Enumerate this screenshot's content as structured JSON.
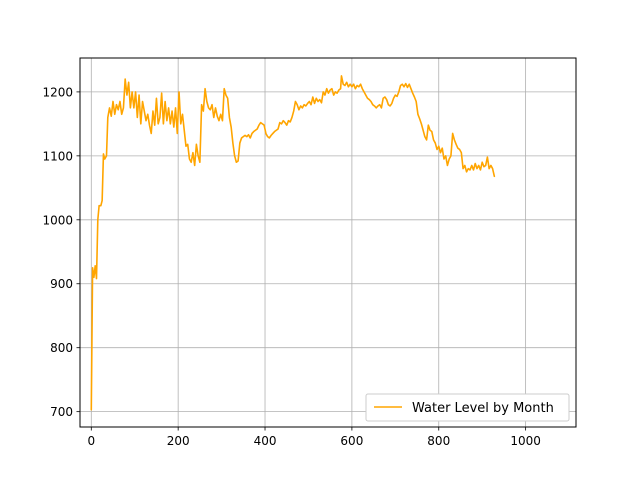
{
  "chart_data": {
    "type": "line",
    "title": "",
    "xlabel": "",
    "ylabel": "",
    "xlim": [
      -26,
      1116
    ],
    "ylim": [
      676,
      1253
    ],
    "x_ticks": [
      0,
      200,
      400,
      600,
      800,
      1000
    ],
    "y_ticks": [
      700,
      800,
      900,
      1000,
      1100,
      1200
    ],
    "grid": true,
    "legend_position": "lower-right",
    "colors": {
      "line": "#ffa500",
      "grid": "#b0b0b0",
      "axes": "#000000"
    },
    "series": [
      {
        "name": "Water Level by Month",
        "points": [
          [
            0,
            703
          ],
          [
            3,
            925
          ],
          [
            6,
            910
          ],
          [
            9,
            928
          ],
          [
            12,
            908
          ],
          [
            15,
            1000
          ],
          [
            18,
            1022
          ],
          [
            22,
            1022
          ],
          [
            25,
            1030
          ],
          [
            28,
            1103
          ],
          [
            31,
            1095
          ],
          [
            35,
            1100
          ],
          [
            38,
            1160
          ],
          [
            42,
            1175
          ],
          [
            46,
            1162
          ],
          [
            50,
            1185
          ],
          [
            54,
            1165
          ],
          [
            58,
            1180
          ],
          [
            62,
            1172
          ],
          [
            66,
            1185
          ],
          [
            70,
            1165
          ],
          [
            74,
            1175
          ],
          [
            78,
            1220
          ],
          [
            82,
            1195
          ],
          [
            86,
            1215
          ],
          [
            90,
            1175
          ],
          [
            94,
            1200
          ],
          [
            98,
            1175
          ],
          [
            102,
            1200
          ],
          [
            106,
            1160
          ],
          [
            110,
            1195
          ],
          [
            114,
            1150
          ],
          [
            118,
            1185
          ],
          [
            122,
            1170
          ],
          [
            126,
            1155
          ],
          [
            130,
            1165
          ],
          [
            134,
            1148
          ],
          [
            138,
            1135
          ],
          [
            142,
            1170
          ],
          [
            146,
            1148
          ],
          [
            150,
            1190
          ],
          [
            154,
            1150
          ],
          [
            158,
            1160
          ],
          [
            162,
            1198
          ],
          [
            166,
            1150
          ],
          [
            170,
            1185
          ],
          [
            174,
            1155
          ],
          [
            178,
            1175
          ],
          [
            182,
            1150
          ],
          [
            186,
            1170
          ],
          [
            190,
            1145
          ],
          [
            194,
            1175
          ],
          [
            198,
            1135
          ],
          [
            202,
            1200
          ],
          [
            206,
            1150
          ],
          [
            210,
            1165
          ],
          [
            214,
            1140
          ],
          [
            218,
            1115
          ],
          [
            222,
            1118
          ],
          [
            226,
            1095
          ],
          [
            230,
            1090
          ],
          [
            234,
            1105
          ],
          [
            238,
            1085
          ],
          [
            242,
            1118
          ],
          [
            246,
            1100
          ],
          [
            250,
            1090
          ],
          [
            254,
            1180
          ],
          [
            258,
            1170
          ],
          [
            262,
            1205
          ],
          [
            266,
            1185
          ],
          [
            270,
            1175
          ],
          [
            274,
            1172
          ],
          [
            278,
            1180
          ],
          [
            282,
            1160
          ],
          [
            286,
            1175
          ],
          [
            290,
            1162
          ],
          [
            294,
            1155
          ],
          [
            298,
            1165
          ],
          [
            302,
            1155
          ],
          [
            306,
            1205
          ],
          [
            310,
            1195
          ],
          [
            314,
            1190
          ],
          [
            318,
            1160
          ],
          [
            322,
            1145
          ],
          [
            326,
            1120
          ],
          [
            330,
            1100
          ],
          [
            334,
            1090
          ],
          [
            338,
            1092
          ],
          [
            342,
            1120
          ],
          [
            346,
            1128
          ],
          [
            350,
            1130
          ],
          [
            354,
            1132
          ],
          [
            358,
            1130
          ],
          [
            362,
            1133
          ],
          [
            366,
            1128
          ],
          [
            370,
            1135
          ],
          [
            374,
            1138
          ],
          [
            378,
            1140
          ],
          [
            382,
            1142
          ],
          [
            386,
            1148
          ],
          [
            390,
            1152
          ],
          [
            394,
            1150
          ],
          [
            398,
            1148
          ],
          [
            402,
            1135
          ],
          [
            406,
            1130
          ],
          [
            410,
            1128
          ],
          [
            414,
            1132
          ],
          [
            418,
            1135
          ],
          [
            422,
            1138
          ],
          [
            426,
            1140
          ],
          [
            430,
            1142
          ],
          [
            434,
            1152
          ],
          [
            438,
            1150
          ],
          [
            442,
            1155
          ],
          [
            446,
            1152
          ],
          [
            450,
            1148
          ],
          [
            454,
            1155
          ],
          [
            458,
            1153
          ],
          [
            462,
            1160
          ],
          [
            466,
            1170
          ],
          [
            470,
            1185
          ],
          [
            474,
            1180
          ],
          [
            478,
            1172
          ],
          [
            482,
            1178
          ],
          [
            486,
            1175
          ],
          [
            490,
            1180
          ],
          [
            494,
            1178
          ],
          [
            498,
            1182
          ],
          [
            502,
            1185
          ],
          [
            506,
            1180
          ],
          [
            510,
            1192
          ],
          [
            514,
            1182
          ],
          [
            518,
            1190
          ],
          [
            522,
            1185
          ],
          [
            526,
            1188
          ],
          [
            530,
            1183
          ],
          [
            534,
            1200
          ],
          [
            538,
            1195
          ],
          [
            542,
            1205
          ],
          [
            546,
            1198
          ],
          [
            550,
            1203
          ],
          [
            554,
            1205
          ],
          [
            558,
            1195
          ],
          [
            562,
            1200
          ],
          [
            566,
            1198
          ],
          [
            570,
            1203
          ],
          [
            574,
            1205
          ],
          [
            576,
            1225
          ],
          [
            580,
            1212
          ],
          [
            584,
            1210
          ],
          [
            588,
            1215
          ],
          [
            592,
            1208
          ],
          [
            596,
            1212
          ],
          [
            600,
            1208
          ],
          [
            604,
            1212
          ],
          [
            608,
            1205
          ],
          [
            612,
            1210
          ],
          [
            616,
            1208
          ],
          [
            620,
            1212
          ],
          [
            624,
            1205
          ],
          [
            628,
            1200
          ],
          [
            632,
            1195
          ],
          [
            636,
            1190
          ],
          [
            640,
            1188
          ],
          [
            644,
            1185
          ],
          [
            648,
            1180
          ],
          [
            652,
            1178
          ],
          [
            656,
            1175
          ],
          [
            660,
            1178
          ],
          [
            664,
            1180
          ],
          [
            668,
            1175
          ],
          [
            672,
            1190
          ],
          [
            676,
            1192
          ],
          [
            680,
            1188
          ],
          [
            684,
            1180
          ],
          [
            688,
            1178
          ],
          [
            692,
            1182
          ],
          [
            696,
            1190
          ],
          [
            700,
            1195
          ],
          [
            704,
            1193
          ],
          [
            708,
            1200
          ],
          [
            712,
            1210
          ],
          [
            716,
            1212
          ],
          [
            720,
            1208
          ],
          [
            724,
            1213
          ],
          [
            728,
            1207
          ],
          [
            732,
            1212
          ],
          [
            736,
            1205
          ],
          [
            740,
            1198
          ],
          [
            744,
            1192
          ],
          [
            748,
            1185
          ],
          [
            752,
            1165
          ],
          [
            756,
            1158
          ],
          [
            760,
            1150
          ],
          [
            764,
            1140
          ],
          [
            768,
            1130
          ],
          [
            772,
            1125
          ],
          [
            776,
            1148
          ],
          [
            780,
            1140
          ],
          [
            784,
            1138
          ],
          [
            788,
            1125
          ],
          [
            792,
            1120
          ],
          [
            796,
            1110
          ],
          [
            800,
            1115
          ],
          [
            804,
            1105
          ],
          [
            808,
            1112
          ],
          [
            812,
            1095
          ],
          [
            816,
            1100
          ],
          [
            820,
            1085
          ],
          [
            824,
            1095
          ],
          [
            828,
            1100
          ],
          [
            832,
            1135
          ],
          [
            836,
            1125
          ],
          [
            840,
            1118
          ],
          [
            844,
            1112
          ],
          [
            848,
            1110
          ],
          [
            852,
            1105
          ],
          [
            856,
            1080
          ],
          [
            860,
            1085
          ],
          [
            864,
            1075
          ],
          [
            868,
            1080
          ],
          [
            872,
            1078
          ],
          [
            876,
            1085
          ],
          [
            880,
            1078
          ],
          [
            884,
            1088
          ],
          [
            888,
            1080
          ],
          [
            892,
            1085
          ],
          [
            896,
            1078
          ],
          [
            900,
            1090
          ],
          [
            904,
            1083
          ],
          [
            908,
            1085
          ],
          [
            912,
            1098
          ],
          [
            916,
            1080
          ],
          [
            920,
            1085
          ],
          [
            924,
            1080
          ],
          [
            928,
            1068
          ]
        ]
      }
    ]
  }
}
